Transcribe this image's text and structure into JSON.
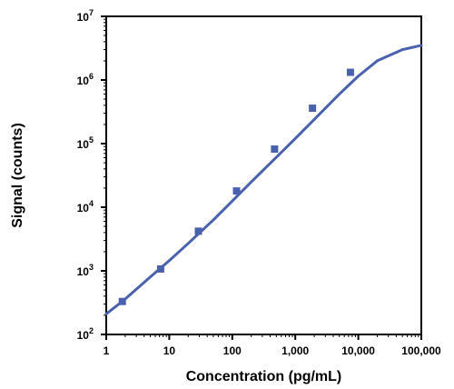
{
  "chart_data": {
    "type": "line",
    "title": "",
    "xlabel": "Concentration (pg/mL)",
    "ylabel": "Signal (counts)",
    "x_scale": "log",
    "y_scale": "log",
    "xlim": [
      1,
      100000
    ],
    "ylim": [
      100,
      10000000
    ],
    "x_ticks": [
      1,
      10,
      100,
      1000,
      10000,
      100000
    ],
    "x_tick_labels": [
      "1",
      "10",
      "100",
      "1,000",
      "10,000",
      "100,000"
    ],
    "y_ticks": [
      {
        "base": "10",
        "exp": "2"
      },
      {
        "base": "10",
        "exp": "3"
      },
      {
        "base": "10",
        "exp": "4"
      },
      {
        "base": "10",
        "exp": "5"
      },
      {
        "base": "10",
        "exp": "6"
      },
      {
        "base": "10",
        "exp": "7"
      }
    ],
    "grid": false,
    "legend": "none",
    "series": [
      {
        "color": "#4a62ad",
        "marker": "square",
        "points": [
          {
            "x": 1.8,
            "y": 330
          },
          {
            "x": 7.3,
            "y": 1070
          },
          {
            "x": 29,
            "y": 4200
          },
          {
            "x": 117,
            "y": 18000
          },
          {
            "x": 469,
            "y": 82000
          },
          {
            "x": 1875,
            "y": 360000
          },
          {
            "x": 7500,
            "y": 1320000
          }
        ],
        "fit_curve": {
          "x": [
            1,
            2,
            5,
            10,
            20,
            50,
            100,
            200,
            500,
            1000,
            2000,
            5000,
            10000,
            20000,
            50000,
            100000
          ],
          "y": [
            210,
            360,
            800,
            1450,
            2700,
            6300,
            12500,
            25000,
            61000,
            120000,
            240000,
            600000,
            1150000,
            2000000,
            3000000,
            3500000
          ]
        }
      }
    ]
  }
}
